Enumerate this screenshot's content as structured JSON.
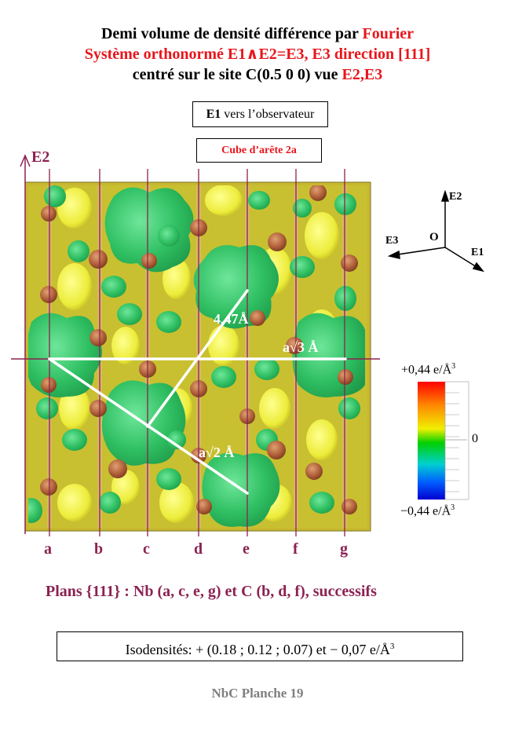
{
  "title": {
    "line1_black": "Demi volume de densité différence par ",
    "line1_red": "Fourier",
    "line2": "Système orthonormé E1∧E2=E3,     E3 direction [111]",
    "line3_black": "centré sur le site C(0.5 0 0)  vue ",
    "line3_red": "E2,E3"
  },
  "observer_box": {
    "bold": "E1",
    "text": " vers l’observateur"
  },
  "cube_box": "Cube d’arête 2a",
  "axis_label_e2": "E2",
  "axes": {
    "e2": "E2",
    "e3": "E3",
    "e1": "E1",
    "origin": "O"
  },
  "annotations": {
    "d1": "4,47Å",
    "d2": "a√3 Å",
    "d3": "a√2 Å"
  },
  "colorbar": {
    "max": "+0,44 e/Å",
    "zero": "0",
    "min": "−0,44 e/Å",
    "sup": "3"
  },
  "plane_labels": [
    "a",
    "b",
    "c",
    "d",
    "e",
    "f",
    "g"
  ],
  "planes_text": "Plans {111} : Nb (a, c, e, g) et C (b, d, f), successifs",
  "isodensity": {
    "text": "Isodensités: + (0.18 ; 0.12 ; 0.07) et − 0,07 e/Å",
    "sup": "3"
  },
  "footer": "NbC  Planche 19",
  "colors": {
    "accent_red": "#e8161b",
    "label_purple": "#8b2252",
    "yellow": "#e6e040",
    "green": "#3cc86a",
    "brown": "#a0522d"
  }
}
